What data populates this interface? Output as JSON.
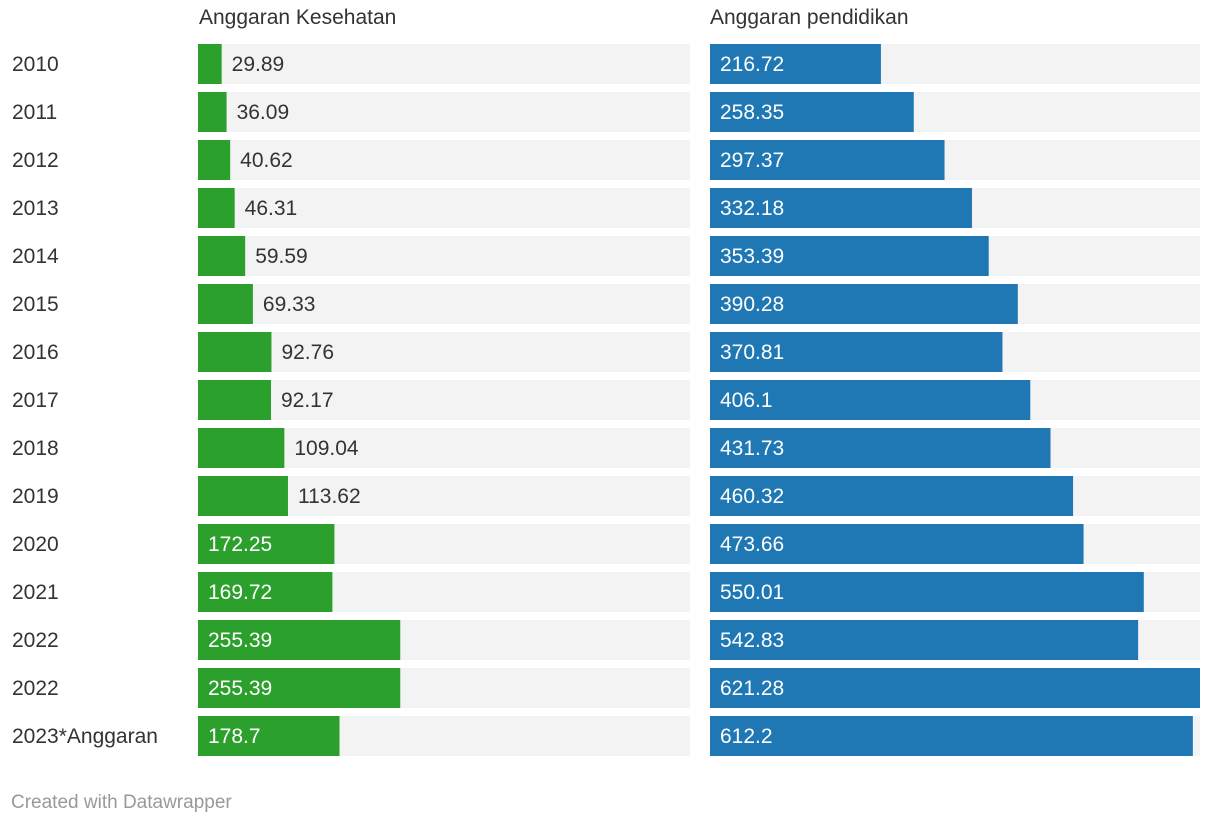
{
  "chart_data": {
    "type": "bar",
    "categories": [
      "2010",
      "2011",
      "2012",
      "2013",
      "2014",
      "2015",
      "2016",
      "2017",
      "2018",
      "2019",
      "2020",
      "2021",
      "2022",
      "2022",
      "2023*Anggaran"
    ],
    "series": [
      {
        "name": "Anggaran Kesehatan",
        "color": "#2ca02c",
        "values": [
          29.89,
          36.09,
          40.62,
          46.31,
          59.59,
          69.33,
          92.76,
          92.17,
          109.04,
          113.62,
          172.25,
          169.72,
          255.39,
          255.39,
          178.7
        ],
        "labels": [
          "29.89",
          "36.09",
          "40.62",
          "46.31",
          "59.59",
          "69.33",
          "92.76",
          "92.17",
          "109.04",
          "113.62",
          "172.25",
          "169.72",
          "255.39",
          "255.39",
          "178.7"
        ]
      },
      {
        "name": "Anggaran pendidikan",
        "color": "#1f77b4",
        "values": [
          216.72,
          258.35,
          297.37,
          332.18,
          353.39,
          390.28,
          370.81,
          406.1,
          431.73,
          460.32,
          473.66,
          550.01,
          542.83,
          621.28,
          612.2
        ],
        "labels": [
          "216.72",
          "258.35",
          "297.37",
          "332.18",
          "353.39",
          "390.28",
          "370.81",
          "406.1",
          "431.73",
          "460.32",
          "473.66",
          "550.01",
          "542.83",
          "621.28",
          "612.2"
        ]
      }
    ],
    "xlim": [
      0,
      621.28
    ],
    "track_color": "#f3f3f3",
    "grid": false,
    "legend": "none"
  },
  "credit": "Created with Datawrapper"
}
